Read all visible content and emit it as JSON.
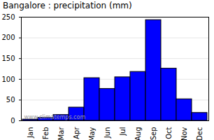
{
  "chart_data": {
    "type": "bar",
    "title": "Bangalore : precipitation (mm)",
    "categories": [
      "Jan",
      "Feb",
      "Mar",
      "Apr",
      "May",
      "Jun",
      "Jul",
      "Aug",
      "Sep",
      "Oct",
      "Nov",
      "Dec"
    ],
    "values": [
      3,
      7,
      14,
      32,
      103,
      77,
      105,
      118,
      243,
      126,
      52,
      19
    ],
    "color": "#0000ff",
    "ylim": [
      0,
      250
    ],
    "yticks": [
      0,
      50,
      100,
      150,
      200,
      250
    ],
    "grid": true,
    "annotations": [
      "www.climatemps.com"
    ]
  }
}
